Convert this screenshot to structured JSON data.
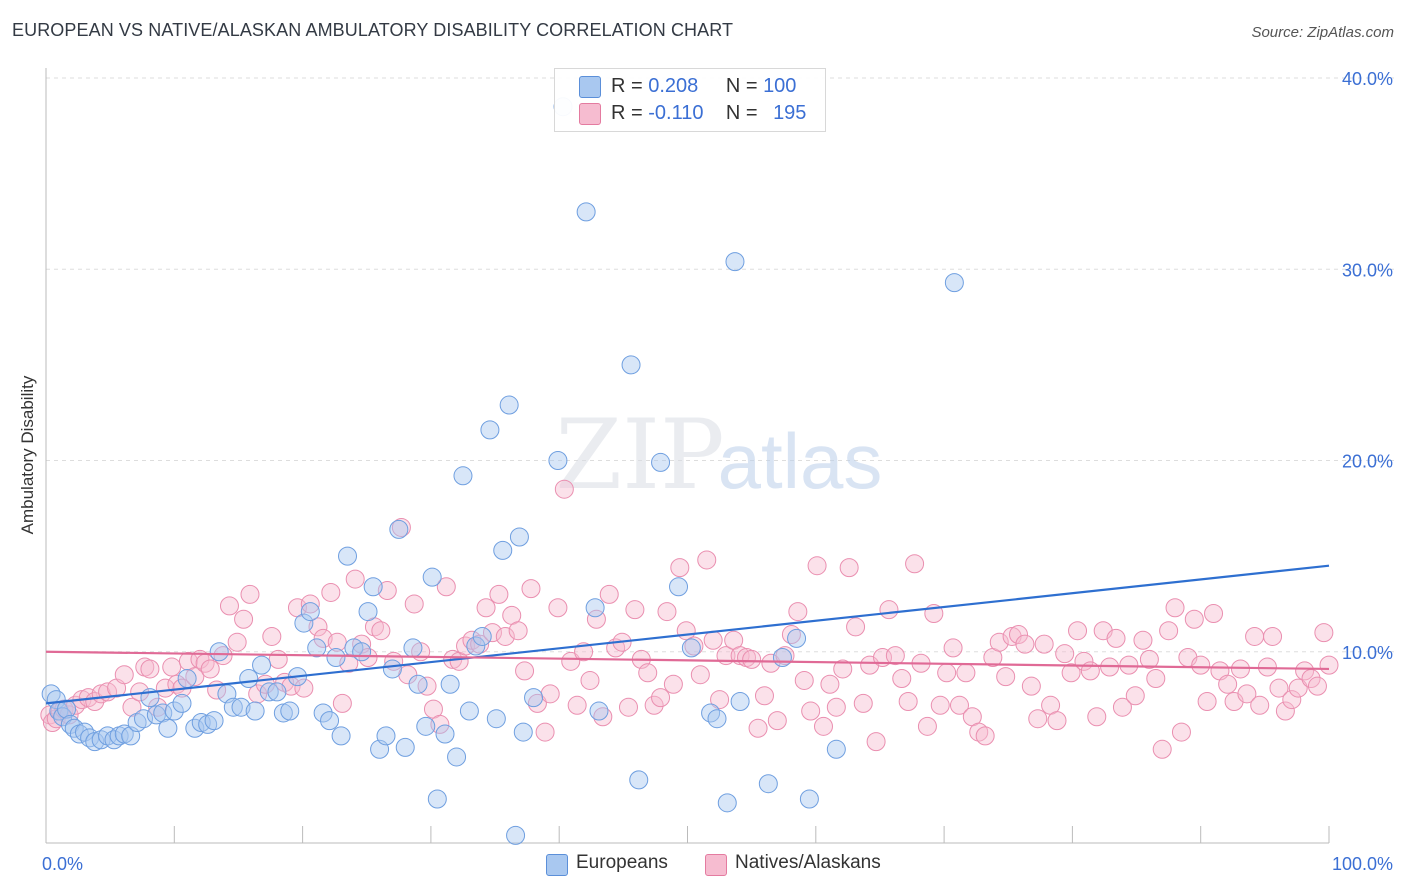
{
  "title": "EUROPEAN VS NATIVE/ALASKAN AMBULATORY DISABILITY CORRELATION CHART",
  "source": "Source: ZipAtlas.com",
  "watermark": {
    "zip": "ZIP",
    "atlas": "atlas"
  },
  "legend_top": [
    {
      "r_label": "R =",
      "r_value": "0.208",
      "n_label": "N =",
      "n_value": "100",
      "color": "#a9c8f0",
      "border": "#5b8fd9"
    },
    {
      "r_label": "R =",
      "r_value": "-0.110",
      "n_label": "N =",
      "n_value": "195",
      "color": "#f6bcd0",
      "border": "#e47ba0"
    }
  ],
  "colors": {
    "europeans_fill": "#a9c8f0",
    "europeans_stroke": "#6f9fe0",
    "europeans_line": "#2e6fd0",
    "natives_fill": "#f6bcd0",
    "natives_stroke": "#ea8fb0",
    "natives_line": "#e06a96",
    "axis_label": "#3b6fd4",
    "grid": "#dddddd"
  },
  "chart_data": {
    "type": "scatter",
    "title": "EUROPEAN VS NATIVE/ALASKAN AMBULATORY DISABILITY CORRELATION CHART",
    "xlabel": "",
    "ylabel": "Ambulatory Disability",
    "xlim": [
      0,
      100
    ],
    "ylim": [
      0,
      40
    ],
    "x_tick_labels": [
      "0.0%",
      "100.0%"
    ],
    "y_ticks": [
      10,
      20,
      30,
      40
    ],
    "y_tick_labels": [
      "10.0%",
      "20.0%",
      "30.0%",
      "40.0%"
    ],
    "grid": true,
    "legend": "bottom",
    "series": [
      {
        "name": "Europeans",
        "r": 0.208,
        "n": 100,
        "trend": {
          "x": [
            0,
            100
          ],
          "y": [
            7.3,
            14.5
          ]
        },
        "points": [
          [
            0.4,
            7.8
          ],
          [
            0.8,
            7.5
          ],
          [
            1.0,
            6.9
          ],
          [
            1.3,
            6.6
          ],
          [
            1.6,
            7.0
          ],
          [
            1.9,
            6.2
          ],
          [
            2.2,
            6.0
          ],
          [
            2.6,
            5.7
          ],
          [
            3.0,
            5.8
          ],
          [
            3.4,
            5.5
          ],
          [
            3.8,
            5.3
          ],
          [
            4.3,
            5.4
          ],
          [
            4.8,
            5.6
          ],
          [
            5.3,
            5.4
          ],
          [
            5.7,
            5.6
          ],
          [
            6.1,
            5.7
          ],
          [
            6.6,
            5.6
          ],
          [
            7.1,
            6.3
          ],
          [
            7.6,
            6.5
          ],
          [
            8.1,
            7.6
          ],
          [
            8.6,
            6.7
          ],
          [
            9.1,
            6.8
          ],
          [
            9.5,
            6.0
          ],
          [
            10.0,
            6.9
          ],
          [
            10.6,
            7.3
          ],
          [
            11.0,
            8.6
          ],
          [
            11.6,
            6.0
          ],
          [
            12.1,
            6.3
          ],
          [
            12.6,
            6.2
          ],
          [
            13.1,
            6.4
          ],
          [
            13.5,
            10.0
          ],
          [
            14.1,
            7.8
          ],
          [
            14.6,
            7.1
          ],
          [
            15.2,
            7.1
          ],
          [
            15.8,
            8.6
          ],
          [
            16.3,
            6.9
          ],
          [
            16.8,
            9.3
          ],
          [
            17.4,
            7.9
          ],
          [
            18.0,
            7.9
          ],
          [
            18.5,
            6.8
          ],
          [
            19.0,
            6.9
          ],
          [
            19.6,
            8.7
          ],
          [
            20.1,
            11.5
          ],
          [
            20.6,
            12.1
          ],
          [
            21.1,
            10.2
          ],
          [
            21.6,
            6.8
          ],
          [
            22.1,
            6.4
          ],
          [
            22.6,
            9.7
          ],
          [
            23.0,
            5.6
          ],
          [
            23.5,
            15.0
          ],
          [
            24.0,
            10.2
          ],
          [
            24.6,
            10.0
          ],
          [
            25.1,
            12.1
          ],
          [
            25.5,
            13.4
          ],
          [
            26.0,
            4.9
          ],
          [
            26.5,
            5.6
          ],
          [
            27.0,
            9.1
          ],
          [
            27.5,
            16.4
          ],
          [
            28.0,
            5.0
          ],
          [
            28.6,
            10.2
          ],
          [
            29.0,
            8.3
          ],
          [
            29.6,
            6.1
          ],
          [
            30.1,
            13.9
          ],
          [
            30.5,
            2.3
          ],
          [
            31.1,
            5.7
          ],
          [
            31.5,
            8.3
          ],
          [
            32.0,
            4.5
          ],
          [
            32.5,
            19.2
          ],
          [
            33.0,
            6.9
          ],
          [
            33.5,
            10.3
          ],
          [
            34.0,
            10.8
          ],
          [
            34.6,
            21.6
          ],
          [
            35.1,
            6.5
          ],
          [
            35.6,
            15.3
          ],
          [
            36.1,
            22.9
          ],
          [
            36.6,
            0.4
          ],
          [
            36.9,
            16.0
          ],
          [
            37.2,
            5.8
          ],
          [
            38.0,
            7.6
          ],
          [
            39.9,
            20.0
          ],
          [
            40.3,
            38.5
          ],
          [
            42.1,
            33.0
          ],
          [
            42.8,
            12.3
          ],
          [
            43.1,
            6.9
          ],
          [
            45.6,
            25.0
          ],
          [
            46.2,
            3.3
          ],
          [
            47.9,
            19.9
          ],
          [
            49.3,
            13.4
          ],
          [
            50.3,
            10.2
          ],
          [
            51.8,
            6.8
          ],
          [
            52.3,
            6.5
          ],
          [
            53.1,
            2.1
          ],
          [
            53.7,
            30.4
          ],
          [
            54.1,
            7.4
          ],
          [
            56.3,
            3.1
          ],
          [
            57.4,
            9.7
          ],
          [
            58.5,
            10.7
          ],
          [
            59.5,
            2.3
          ],
          [
            61.6,
            4.9
          ],
          [
            70.8,
            29.3
          ]
        ]
      },
      {
        "name": "Natives/Alaskans",
        "r": -0.11,
        "n": 195,
        "trend": {
          "x": [
            0,
            100
          ],
          "y": [
            10.0,
            9.1
          ]
        },
        "points": [
          [
            0.3,
            6.7
          ],
          [
            0.5,
            6.3
          ],
          [
            0.8,
            6.5
          ],
          [
            1.1,
            6.9
          ],
          [
            1.4,
            7.0
          ],
          [
            1.8,
            6.7
          ],
          [
            2.3,
            7.2
          ],
          [
            2.8,
            7.5
          ],
          [
            3.3,
            7.6
          ],
          [
            3.8,
            7.4
          ],
          [
            4.3,
            7.8
          ],
          [
            4.8,
            7.9
          ],
          [
            5.5,
            8.1
          ],
          [
            6.1,
            8.8
          ],
          [
            6.7,
            7.1
          ],
          [
            7.3,
            7.9
          ],
          [
            7.7,
            9.2
          ],
          [
            8.1,
            9.1
          ],
          [
            8.7,
            7.1
          ],
          [
            9.3,
            8.1
          ],
          [
            9.8,
            9.2
          ],
          [
            10.2,
            8.3
          ],
          [
            10.6,
            8.1
          ],
          [
            11.1,
            9.5
          ],
          [
            11.6,
            8.7
          ],
          [
            12.0,
            9.6
          ],
          [
            12.4,
            9.4
          ],
          [
            12.8,
            9.1
          ],
          [
            13.3,
            8.0
          ],
          [
            13.8,
            9.8
          ],
          [
            14.3,
            12.4
          ],
          [
            14.9,
            10.5
          ],
          [
            15.4,
            11.7
          ],
          [
            15.9,
            13.0
          ],
          [
            16.5,
            7.8
          ],
          [
            17.1,
            8.3
          ],
          [
            17.6,
            10.8
          ],
          [
            18.1,
            9.6
          ],
          [
            18.6,
            8.4
          ],
          [
            19.1,
            8.2
          ],
          [
            19.6,
            12.3
          ],
          [
            20.1,
            8.1
          ],
          [
            20.6,
            12.5
          ],
          [
            21.2,
            11.3
          ],
          [
            21.6,
            10.7
          ],
          [
            22.2,
            13.1
          ],
          [
            22.7,
            10.5
          ],
          [
            23.1,
            7.3
          ],
          [
            23.6,
            9.4
          ],
          [
            24.1,
            13.8
          ],
          [
            24.6,
            10.4
          ],
          [
            25.1,
            9.7
          ],
          [
            25.6,
            11.3
          ],
          [
            26.1,
            11.1
          ],
          [
            26.6,
            13.2
          ],
          [
            27.1,
            9.5
          ],
          [
            27.7,
            16.5
          ],
          [
            28.2,
            8.8
          ],
          [
            28.7,
            12.5
          ],
          [
            29.2,
            10.0
          ],
          [
            29.7,
            8.2
          ],
          [
            30.2,
            7.0
          ],
          [
            30.7,
            6.2
          ],
          [
            31.2,
            13.4
          ],
          [
            31.7,
            9.6
          ],
          [
            32.2,
            9.5
          ],
          [
            32.7,
            10.3
          ],
          [
            33.2,
            10.6
          ],
          [
            33.8,
            10.4
          ],
          [
            34.3,
            12.3
          ],
          [
            34.8,
            11.0
          ],
          [
            35.3,
            13.0
          ],
          [
            35.8,
            10.8
          ],
          [
            36.3,
            11.9
          ],
          [
            36.8,
            11.1
          ],
          [
            37.3,
            9.0
          ],
          [
            37.8,
            13.3
          ],
          [
            38.3,
            7.3
          ],
          [
            38.9,
            5.8
          ],
          [
            39.3,
            7.8
          ],
          [
            39.9,
            12.3
          ],
          [
            40.4,
            18.5
          ],
          [
            40.9,
            9.5
          ],
          [
            41.4,
            7.2
          ],
          [
            41.9,
            10.0
          ],
          [
            42.4,
            8.5
          ],
          [
            42.9,
            11.7
          ],
          [
            43.4,
            6.6
          ],
          [
            43.9,
            13.0
          ],
          [
            44.4,
            10.2
          ],
          [
            44.9,
            10.5
          ],
          [
            45.4,
            7.1
          ],
          [
            45.9,
            12.2
          ],
          [
            46.4,
            9.6
          ],
          [
            46.9,
            8.9
          ],
          [
            47.4,
            7.2
          ],
          [
            47.9,
            7.6
          ],
          [
            48.4,
            12.1
          ],
          [
            48.9,
            8.3
          ],
          [
            49.4,
            14.4
          ],
          [
            49.9,
            11.1
          ],
          [
            50.5,
            10.3
          ],
          [
            51.0,
            8.8
          ],
          [
            51.5,
            14.8
          ],
          [
            52.0,
            10.6
          ],
          [
            52.5,
            7.5
          ],
          [
            53.0,
            9.8
          ],
          [
            53.6,
            10.6
          ],
          [
            54.1,
            9.8
          ],
          [
            54.6,
            9.7
          ],
          [
            55.0,
            9.6
          ],
          [
            55.5,
            6.0
          ],
          [
            56.0,
            7.7
          ],
          [
            56.5,
            9.4
          ],
          [
            57.0,
            6.4
          ],
          [
            57.6,
            9.8
          ],
          [
            58.1,
            10.9
          ],
          [
            58.6,
            12.1
          ],
          [
            59.1,
            8.5
          ],
          [
            59.6,
            6.9
          ],
          [
            60.1,
            14.5
          ],
          [
            60.6,
            6.1
          ],
          [
            61.1,
            8.3
          ],
          [
            61.6,
            7.1
          ],
          [
            62.1,
            9.1
          ],
          [
            62.6,
            14.4
          ],
          [
            63.1,
            11.3
          ],
          [
            63.7,
            7.3
          ],
          [
            64.2,
            9.3
          ],
          [
            64.7,
            5.3
          ],
          [
            65.2,
            9.7
          ],
          [
            65.7,
            12.2
          ],
          [
            66.2,
            9.8
          ],
          [
            66.7,
            8.6
          ],
          [
            67.2,
            7.4
          ],
          [
            67.7,
            14.6
          ],
          [
            68.2,
            9.4
          ],
          [
            68.7,
            6.1
          ],
          [
            69.2,
            12.0
          ],
          [
            69.7,
            7.2
          ],
          [
            70.2,
            8.9
          ],
          [
            70.7,
            10.2
          ],
          [
            71.2,
            7.2
          ],
          [
            71.7,
            8.9
          ],
          [
            72.2,
            6.6
          ],
          [
            72.7,
            5.8
          ],
          [
            73.2,
            5.6
          ],
          [
            73.8,
            9.7
          ],
          [
            74.3,
            10.5
          ],
          [
            74.8,
            8.7
          ],
          [
            75.3,
            10.8
          ],
          [
            75.8,
            10.9
          ],
          [
            76.3,
            10.4
          ],
          [
            76.8,
            8.2
          ],
          [
            77.3,
            6.5
          ],
          [
            77.8,
            10.4
          ],
          [
            78.3,
            7.2
          ],
          [
            78.8,
            6.4
          ],
          [
            79.4,
            9.9
          ],
          [
            79.9,
            8.9
          ],
          [
            80.4,
            11.1
          ],
          [
            80.9,
            9.5
          ],
          [
            81.4,
            9.0
          ],
          [
            81.9,
            6.6
          ],
          [
            82.4,
            11.1
          ],
          [
            82.9,
            9.2
          ],
          [
            83.4,
            10.7
          ],
          [
            83.9,
            7.1
          ],
          [
            84.4,
            9.3
          ],
          [
            84.9,
            7.7
          ],
          [
            85.5,
            10.6
          ],
          [
            86.0,
            9.6
          ],
          [
            86.5,
            8.6
          ],
          [
            87.0,
            4.9
          ],
          [
            87.5,
            11.1
          ],
          [
            88.0,
            12.3
          ],
          [
            88.5,
            5.8
          ],
          [
            89.0,
            9.7
          ],
          [
            89.5,
            11.7
          ],
          [
            90.0,
            9.3
          ],
          [
            90.5,
            7.4
          ],
          [
            91.0,
            12.0
          ],
          [
            91.5,
            9.0
          ],
          [
            92.1,
            8.3
          ],
          [
            92.6,
            7.4
          ],
          [
            93.1,
            9.1
          ],
          [
            93.6,
            7.8
          ],
          [
            94.2,
            10.8
          ],
          [
            94.6,
            7.2
          ],
          [
            95.2,
            9.2
          ],
          [
            95.6,
            10.8
          ],
          [
            96.1,
            8.1
          ],
          [
            96.6,
            6.9
          ],
          [
            97.1,
            7.5
          ],
          [
            97.6,
            8.1
          ],
          [
            98.1,
            9.0
          ],
          [
            98.6,
            8.6
          ],
          [
            99.1,
            8.2
          ],
          [
            99.6,
            11.0
          ],
          [
            100.0,
            9.3
          ]
        ]
      }
    ]
  }
}
